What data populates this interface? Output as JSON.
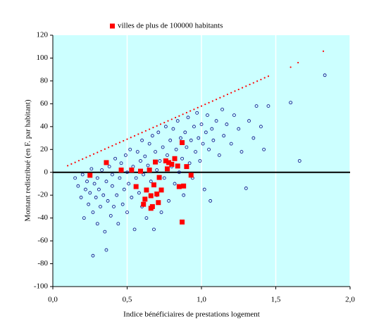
{
  "chart_data": {
    "type": "scatter",
    "x_label": "Indice bénéficiaires de prestations logement",
    "y_label": "Montant redistribué (en F. par habitant)",
    "xlim": [
      0,
      2
    ],
    "ylim": [
      -100,
      120
    ],
    "xticks": [
      {
        "value": 0,
        "label": "0,0"
      },
      {
        "value": 0.5,
        "label": "0,5"
      },
      {
        "value": 1,
        "label": "1,0"
      },
      {
        "value": 1.5,
        "label": "1,5"
      },
      {
        "value": 2,
        "label": "2,0"
      }
    ],
    "yticks": [
      -100,
      -80,
      -60,
      -40,
      -20,
      0,
      20,
      40,
      60,
      80,
      100,
      120
    ],
    "grid": "x",
    "background": "#ccffff",
    "legend": "top",
    "series": [
      {
        "color": "#000080",
        "marker": "circle",
        "x": [
          0.15,
          0.17,
          0.19,
          0.2,
          0.21,
          0.22,
          0.23,
          0.24,
          0.25,
          0.26,
          0.27,
          0.27,
          0.28,
          0.29,
          0.3,
          0.3,
          0.31,
          0.32,
          0.33,
          0.34,
          0.35,
          0.36,
          0.36,
          0.37,
          0.38,
          0.39,
          0.4,
          0.4,
          0.41,
          0.42,
          0.43,
          0.44,
          0.45,
          0.46,
          0.47,
          0.48,
          0.49,
          0.5,
          0.5,
          0.51,
          0.52,
          0.53,
          0.54,
          0.55,
          0.56,
          0.57,
          0.58,
          0.59,
          0.6,
          0.6,
          0.61,
          0.62,
          0.63,
          0.64,
          0.65,
          0.66,
          0.67,
          0.68,
          0.69,
          0.7,
          0.7,
          0.71,
          0.72,
          0.73,
          0.74,
          0.75,
          0.76,
          0.77,
          0.78,
          0.79,
          0.8,
          0.81,
          0.82,
          0.83,
          0.84,
          0.85,
          0.86,
          0.87,
          0.88,
          0.89,
          0.9,
          0.91,
          0.92,
          0.93,
          0.94,
          0.95,
          0.96,
          0.97,
          0.98,
          0.99,
          1.0,
          1.01,
          1.02,
          1.03,
          1.04,
          1.05,
          1.06,
          1.07,
          1.08,
          1.1,
          1.12,
          1.14,
          1.15,
          1.17,
          1.2,
          1.22,
          1.25,
          1.27,
          1.3,
          1.32,
          1.35,
          1.37,
          1.4,
          1.42,
          1.45,
          1.6,
          1.66,
          1.83
        ],
        "values": [
          -5,
          -12,
          -22,
          -2,
          -40,
          -15,
          -8,
          -28,
          -18,
          3,
          -73,
          -35,
          -10,
          -22,
          -5,
          -45,
          -15,
          -30,
          2,
          -20,
          -52,
          -68,
          -8,
          -25,
          5,
          -38,
          -12,
          -2,
          -30,
          12,
          -20,
          -45,
          -5,
          8,
          -28,
          -15,
          15,
          -35,
          0,
          -10,
          20,
          -22,
          5,
          -50,
          -5,
          18,
          -18,
          10,
          28,
          -30,
          -2,
          14,
          -40,
          6,
          25,
          -8,
          32,
          -50,
          18,
          2,
          -20,
          35,
          10,
          -35,
          22,
          -5,
          40,
          15,
          -25,
          28,
          5,
          38,
          -10,
          20,
          45,
          0,
          30,
          12,
          -20,
          35,
          22,
          48,
          8,
          28,
          -5,
          40,
          18,
          52,
          30,
          10,
          42,
          25,
          -15,
          35,
          50,
          20,
          -25,
          38,
          28,
          45,
          15,
          55,
          32,
          42,
          25,
          50,
          38,
          18,
          -14,
          45,
          30,
          58,
          40,
          20,
          58,
          61,
          10,
          85
        ]
      },
      {
        "color": "#ff0000",
        "marker": "dot",
        "x": [
          0.1,
          0.125,
          0.15,
          0.175,
          0.2,
          0.225,
          0.25,
          0.275,
          0.3,
          0.325,
          0.35,
          0.375,
          0.4,
          0.425,
          0.45,
          0.475,
          0.5,
          0.525,
          0.55,
          0.575,
          0.6,
          0.625,
          0.65,
          0.675,
          0.7,
          0.725,
          0.75,
          0.775,
          0.8,
          0.825,
          0.85,
          0.875,
          0.9,
          0.925,
          0.95,
          0.975,
          1.0,
          1.025,
          1.05,
          1.075,
          1.1,
          1.125,
          1.15,
          1.175,
          1.2,
          1.225,
          1.25,
          1.275,
          1.3,
          1.325,
          1.35,
          1.375,
          1.4,
          1.425,
          1.45,
          1.6,
          1.65,
          1.82
        ],
        "values": [
          5.8,
          7.3,
          8.7,
          10.2,
          11.6,
          13.1,
          14.5,
          16,
          17.4,
          18.9,
          20.3,
          21.8,
          23.2,
          24.7,
          26.1,
          27.6,
          29,
          30.5,
          31.9,
          33.4,
          34.8,
          36.3,
          37.7,
          39.2,
          40.6,
          42.1,
          43.5,
          45,
          46.4,
          47.9,
          49.3,
          50.8,
          52.2,
          53.7,
          55.1,
          56.6,
          58,
          59.5,
          60.9,
          62.4,
          63.8,
          65.3,
          66.7,
          68.2,
          69.6,
          71.1,
          72.5,
          74,
          75.4,
          76.9,
          78.3,
          79.8,
          81.2,
          82.7,
          84.1,
          92,
          96,
          106
        ]
      },
      {
        "name": "villes de plus de 100000 habitants",
        "color": "#ff0000",
        "marker": "square",
        "x": [
          0.25,
          0.36,
          0.46,
          0.56,
          0.59,
          0.61,
          0.62,
          0.65,
          0.67,
          0.66,
          0.68,
          0.69,
          0.7,
          0.71,
          0.716,
          0.73,
          0.76,
          0.77,
          0.78,
          0.8,
          0.82,
          0.84,
          0.85,
          0.87,
          0.88,
          0.9,
          0.93,
          0.87,
          0.66,
          0.63,
          0.53
        ],
        "values": [
          -2.6,
          8.5,
          2,
          -12.5,
          1,
          -28,
          -23.5,
          2,
          -30,
          -31.5,
          -11,
          9,
          -19,
          -26.5,
          -4.5,
          -15.5,
          10,
          3,
          8.5,
          7,
          12,
          5.5,
          -12.5,
          26,
          -12,
          5,
          -2.5,
          -43.5,
          -20.5,
          -15.5,
          2
        ]
      }
    ]
  }
}
